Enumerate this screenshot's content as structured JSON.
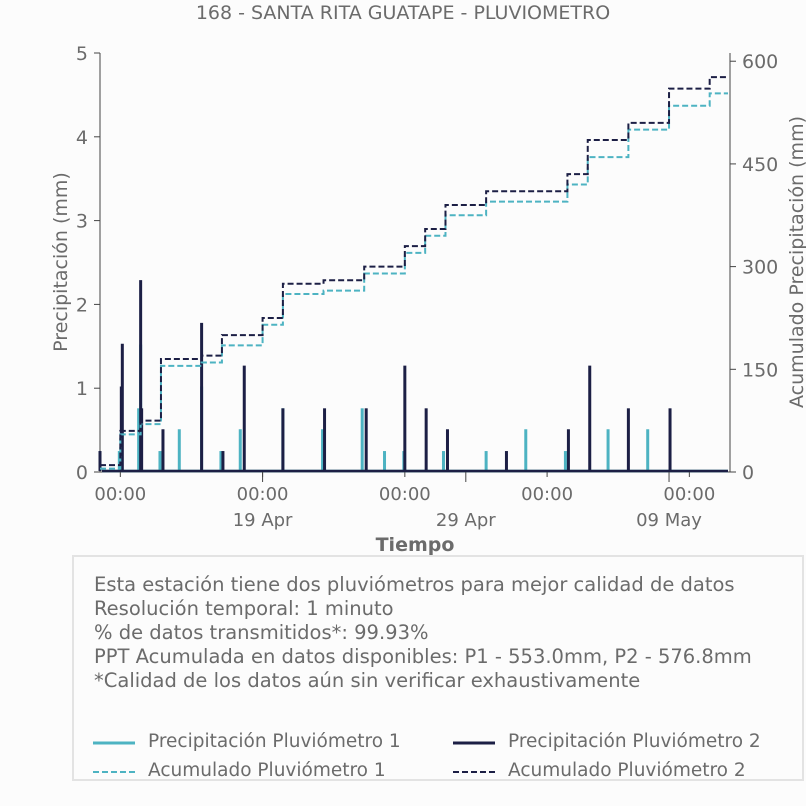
{
  "title": "168 - SANTA RITA GUATAPE - PLUVIOMETRO",
  "xlabel": "Tiempo",
  "info": {
    "lines": [
      "Esta estación tiene dos pluviómetros para mejor calidad de datos",
      "Resolución temporal: 1 minuto",
      "% de datos transmitidos*: 99.93%",
      "PPT Acumulada en datos disponibles: P1 - 553.0mm, P2 - 576.8mm",
      "*Calidad de los datos aún sin verificar exhaustivamente"
    ]
  },
  "legend": [
    {
      "label": "Precipitación Pluviómetro 1",
      "color": "#4db3c2",
      "style": "solid"
    },
    {
      "label": "Precipitación Pluviómetro 2",
      "color": "#1c1f45",
      "style": "solid"
    },
    {
      "label": "Acumulado Pluviómetro 1",
      "color": "#4db3c2",
      "style": "dashed"
    },
    {
      "label": "Acumulado Pluviómetro 2",
      "color": "#1c1f45",
      "style": "dashed"
    }
  ],
  "chart_data": {
    "type": "line",
    "title": "168 - SANTA RITA GUATAPE - PLUVIOMETRO",
    "xlabel": "Tiempo",
    "ylabel": "Precipitación (mm)",
    "ylabel_right": "Acumulado Precipitación (mm)",
    "xlim_days": [
      "2021-04-11",
      "2021-05-12"
    ],
    "ylim": [
      0,
      5
    ],
    "ylim_right": [
      0,
      612
    ],
    "yticks": [
      "0",
      "1",
      "2",
      "3",
      "4",
      "5"
    ],
    "yticks_right": [
      "0",
      "150",
      "300",
      "450",
      "600"
    ],
    "xticks": [
      {
        "date": "2021-04-12",
        "label": "00:00"
      },
      {
        "date": "2021-04-19",
        "label": "00:00"
      },
      {
        "date": "2021-04-26",
        "label": "00:00"
      },
      {
        "date": "2021-05-03",
        "label": "00:00"
      },
      {
        "date": "2021-05-10",
        "label": "00:00"
      }
    ],
    "xticks_major": [
      {
        "date": "2021-04-19",
        "label": "19 Apr"
      },
      {
        "date": "2021-04-29",
        "label": "29 Apr"
      },
      {
        "date": "2021-05-09",
        "label": "09 May"
      }
    ],
    "grid": false,
    "series": [
      {
        "name": "Precipitación Pluviómetro 1",
        "color": "#4db3c2",
        "axis": "left",
        "x": [
          "2021-04-11",
          "2021-04-12",
          "2021-04-13",
          "2021-04-13",
          "2021-04-14",
          "2021-04-15",
          "2021-04-16",
          "2021-04-17",
          "2021-04-18",
          "2021-04-20",
          "2021-04-22",
          "2021-04-24",
          "2021-04-25",
          "2021-04-26",
          "2021-04-28",
          "2021-04-30",
          "2021-05-02",
          "2021-05-04",
          "2021-05-06",
          "2021-05-08"
        ],
        "y": [
          0.25,
          0.25,
          0.76,
          1.52,
          0.25,
          0.51,
          1.02,
          0.25,
          0.51,
          0.76,
          0.51,
          0.76,
          0.25,
          0.25,
          0.25,
          0.25,
          0.51,
          0.25,
          0.51,
          0.51
        ]
      },
      {
        "name": "Precipitación Pluviómetro 2",
        "color": "#1c1f45",
        "axis": "left",
        "x": [
          "2021-04-11",
          "2021-04-12",
          "2021-04-12",
          "2021-04-13",
          "2021-04-13",
          "2021-04-14",
          "2021-04-16",
          "2021-04-17",
          "2021-04-18",
          "2021-04-20",
          "2021-04-22",
          "2021-04-24",
          "2021-04-26",
          "2021-04-27",
          "2021-04-28",
          "2021-05-01",
          "2021-05-04",
          "2021-05-05",
          "2021-05-07",
          "2021-05-09"
        ],
        "y": [
          0.25,
          1.02,
          1.53,
          2.29,
          0.76,
          0.51,
          1.78,
          0.25,
          1.27,
          0.76,
          0.76,
          0.76,
          1.27,
          0.76,
          0.51,
          0.25,
          0.51,
          1.27,
          0.76,
          0.76
        ]
      },
      {
        "name": "Acumulado Pluviómetro 1",
        "color": "#4db3c2",
        "axis": "right",
        "style": "dashed",
        "x": [
          "2021-04-11",
          "2021-04-12",
          "2021-04-13",
          "2021-04-14",
          "2021-04-16",
          "2021-04-17",
          "2021-04-19",
          "2021-04-20",
          "2021-04-22",
          "2021-04-24",
          "2021-04-26",
          "2021-04-27",
          "2021-04-28",
          "2021-04-30",
          "2021-05-02",
          "2021-05-04",
          "2021-05-05",
          "2021-05-07",
          "2021-05-09",
          "2021-05-11"
        ],
        "y": [
          5,
          55,
          70,
          155,
          160,
          185,
          215,
          260,
          265,
          290,
          320,
          345,
          375,
          395,
          395,
          420,
          460,
          500,
          535,
          553
        ]
      },
      {
        "name": "Acumulado Pluviómetro 2",
        "color": "#1c1f45",
        "axis": "right",
        "style": "dashed",
        "x": [
          "2021-04-11",
          "2021-04-12",
          "2021-04-13",
          "2021-04-14",
          "2021-04-16",
          "2021-04-17",
          "2021-04-19",
          "2021-04-20",
          "2021-04-22",
          "2021-04-24",
          "2021-04-26",
          "2021-04-27",
          "2021-04-28",
          "2021-04-30",
          "2021-05-02",
          "2021-05-04",
          "2021-05-05",
          "2021-05-07",
          "2021-05-09",
          "2021-05-11"
        ],
        "y": [
          10,
          60,
          75,
          165,
          170,
          200,
          225,
          275,
          280,
          300,
          330,
          355,
          390,
          410,
          410,
          435,
          485,
          510,
          560,
          576.8
        ]
      }
    ]
  }
}
